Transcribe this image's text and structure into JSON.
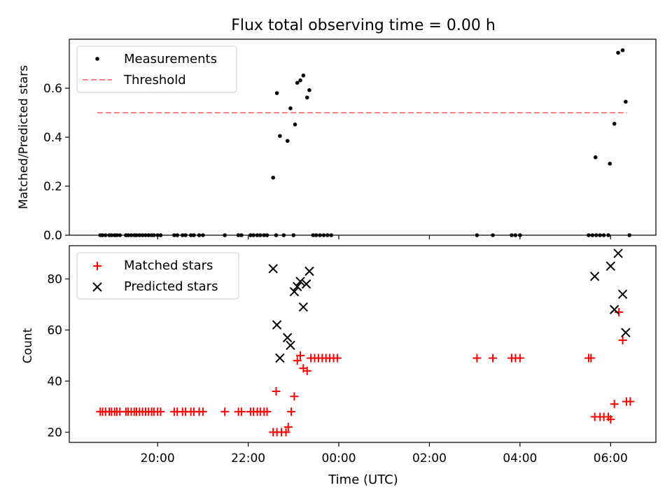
{
  "figure": {
    "title": "Flux total observing time = 0.00 h",
    "xlabel": "Time (UTC)",
    "x_ticks": [
      "20:00",
      "22:00",
      "00:00",
      "02:00",
      "04:00",
      "06:00"
    ]
  },
  "chart_data": [
    {
      "type": "scatter",
      "ylabel": "Matched/Predicted stars",
      "xlim": [
        "18:03",
        "07:00"
      ],
      "ylim": [
        0.0,
        0.8
      ],
      "y_ticks": [
        "0.0",
        "0.2",
        "0.4",
        "0.6"
      ],
      "legend": {
        "placement": "top-left",
        "entries": [
          "Measurements",
          "Threshold"
        ]
      },
      "threshold": {
        "name": "Threshold",
        "value": 0.5,
        "x_start": "18:40",
        "x_end": "06:22",
        "color": "#ff8080",
        "style": "dashed"
      },
      "series": [
        {
          "name": "Measurements",
          "color": "#000000",
          "marker": "dot",
          "points": [
            [
              "18:44",
              0
            ],
            [
              "18:47",
              0
            ],
            [
              "18:51",
              0
            ],
            [
              "18:56",
              0
            ],
            [
              "18:59",
              0
            ],
            [
              "19:03",
              0
            ],
            [
              "19:06",
              0
            ],
            [
              "19:10",
              0
            ],
            [
              "19:18",
              0
            ],
            [
              "19:21",
              0
            ],
            [
              "19:25",
              0
            ],
            [
              "19:29",
              0
            ],
            [
              "19:32",
              0
            ],
            [
              "19:36",
              0
            ],
            [
              "19:40",
              0
            ],
            [
              "19:44",
              0
            ],
            [
              "19:48",
              0
            ],
            [
              "19:52",
              0
            ],
            [
              "19:55",
              0
            ],
            [
              "20:00",
              0
            ],
            [
              "20:04",
              0
            ],
            [
              "20:22",
              0
            ],
            [
              "20:26",
              0
            ],
            [
              "20:33",
              0
            ],
            [
              "20:37",
              0
            ],
            [
              "20:44",
              0
            ],
            [
              "20:48",
              0
            ],
            [
              "20:55",
              0
            ],
            [
              "21:00",
              0
            ],
            [
              "21:29",
              0
            ],
            [
              "21:47",
              0
            ],
            [
              "21:51",
              0
            ],
            [
              "22:03",
              0
            ],
            [
              "22:07",
              0
            ],
            [
              "22:12",
              0
            ],
            [
              "22:16",
              0
            ],
            [
              "22:21",
              0
            ],
            [
              "22:25",
              0
            ],
            [
              "22:33",
              0.235
            ],
            [
              "22:37",
              0
            ],
            [
              "22:38",
              0.58
            ],
            [
              "22:42",
              0.405
            ],
            [
              "22:47",
              0
            ],
            [
              "22:52",
              0.385
            ],
            [
              "22:56",
              0.518
            ],
            [
              "23:00",
              0
            ],
            [
              "23:02",
              0.452
            ],
            [
              "23:05",
              0.622
            ],
            [
              "23:09",
              0.632
            ],
            [
              "23:13",
              0.652
            ],
            [
              "23:18",
              0.562
            ],
            [
              "23:21",
              0.592
            ],
            [
              "23:26",
              0
            ],
            [
              "23:30",
              0
            ],
            [
              "23:35",
              0
            ],
            [
              "23:40",
              0
            ],
            [
              "23:45",
              0
            ],
            [
              "23:50",
              0
            ],
            [
              "03:03",
              0
            ],
            [
              "03:24",
              0
            ],
            [
              "03:49",
              0
            ],
            [
              "03:54",
              0
            ],
            [
              "04:00",
              0
            ],
            [
              "05:31",
              0
            ],
            [
              "05:36",
              0
            ],
            [
              "05:41",
              0
            ],
            [
              "05:40",
              0.318
            ],
            [
              "05:46",
              0
            ],
            [
              "05:51",
              0
            ],
            [
              "05:57",
              0
            ],
            [
              "05:59",
              0.292
            ],
            [
              "06:05",
              0.455
            ],
            [
              "06:10",
              0.745
            ],
            [
              "06:16",
              0.755
            ],
            [
              "06:20",
              0.545
            ],
            [
              "06:25",
              0
            ]
          ]
        }
      ]
    },
    {
      "type": "scatter",
      "ylabel": "Count",
      "xlim": [
        "18:03",
        "07:00"
      ],
      "ylim": [
        16,
        93
      ],
      "y_ticks": [
        "20",
        "40",
        "60",
        "80"
      ],
      "legend": {
        "placement": "top-left",
        "entries": [
          "Matched stars",
          "Predicted stars"
        ]
      },
      "series": [
        {
          "name": "Matched stars",
          "color": "#ff0000",
          "marker": "plus",
          "points": [
            [
              "18:44",
              28
            ],
            [
              "18:47",
              28
            ],
            [
              "18:51",
              28
            ],
            [
              "18:56",
              28
            ],
            [
              "18:59",
              28
            ],
            [
              "19:03",
              28
            ],
            [
              "19:06",
              28
            ],
            [
              "19:10",
              28
            ],
            [
              "19:18",
              28
            ],
            [
              "19:21",
              28
            ],
            [
              "19:25",
              28
            ],
            [
              "19:29",
              28
            ],
            [
              "19:32",
              28
            ],
            [
              "19:36",
              28
            ],
            [
              "19:40",
              28
            ],
            [
              "19:44",
              28
            ],
            [
              "19:48",
              28
            ],
            [
              "19:52",
              28
            ],
            [
              "19:55",
              28
            ],
            [
              "20:00",
              28
            ],
            [
              "20:04",
              28
            ],
            [
              "20:22",
              28
            ],
            [
              "20:26",
              28
            ],
            [
              "20:33",
              28
            ],
            [
              "20:37",
              28
            ],
            [
              "20:44",
              28
            ],
            [
              "20:48",
              28
            ],
            [
              "20:55",
              28
            ],
            [
              "21:00",
              28
            ],
            [
              "21:29",
              28
            ],
            [
              "21:47",
              28
            ],
            [
              "21:51",
              28
            ],
            [
              "22:03",
              28
            ],
            [
              "22:07",
              28
            ],
            [
              "22:12",
              28
            ],
            [
              "22:16",
              28
            ],
            [
              "22:21",
              28
            ],
            [
              "22:25",
              28
            ],
            [
              "22:33",
              20
            ],
            [
              "22:37",
              36
            ],
            [
              "22:38",
              20
            ],
            [
              "22:44",
              20
            ],
            [
              "22:50",
              20
            ],
            [
              "22:53",
              22
            ],
            [
              "22:57",
              28
            ],
            [
              "23:01",
              34
            ],
            [
              "23:05",
              48
            ],
            [
              "23:09",
              50
            ],
            [
              "23:13",
              45
            ],
            [
              "23:18",
              44
            ],
            [
              "23:23",
              49
            ],
            [
              "23:28",
              49
            ],
            [
              "23:33",
              49
            ],
            [
              "23:38",
              49
            ],
            [
              "23:43",
              49
            ],
            [
              "23:48",
              49
            ],
            [
              "23:53",
              49
            ],
            [
              "23:58",
              49
            ],
            [
              "03:03",
              49
            ],
            [
              "03:24",
              49
            ],
            [
              "03:49",
              49
            ],
            [
              "03:54",
              49
            ],
            [
              "04:00",
              49
            ],
            [
              "05:31",
              49
            ],
            [
              "05:34",
              49
            ],
            [
              "05:39",
              26
            ],
            [
              "05:46",
              26
            ],
            [
              "05:51",
              26
            ],
            [
              "05:57",
              26
            ],
            [
              "06:00",
              25
            ],
            [
              "06:05",
              31
            ],
            [
              "06:11",
              67
            ],
            [
              "06:16",
              56
            ],
            [
              "06:21",
              32
            ],
            [
              "06:26",
              32
            ]
          ]
        },
        {
          "name": "Predicted stars",
          "color": "#000000",
          "marker": "x",
          "points": [
            [
              "22:33",
              84
            ],
            [
              "22:38",
              62
            ],
            [
              "22:42",
              49
            ],
            [
              "22:52",
              57
            ],
            [
              "22:56",
              54
            ],
            [
              "23:01",
              75
            ],
            [
              "23:05",
              77
            ],
            [
              "23:09",
              79
            ],
            [
              "23:13",
              69
            ],
            [
              "23:17",
              78
            ],
            [
              "23:21",
              83
            ],
            [
              "05:39",
              81
            ],
            [
              "06:00",
              85
            ],
            [
              "06:05",
              68
            ],
            [
              "06:10",
              90
            ],
            [
              "06:16",
              74
            ],
            [
              "06:20",
              59
            ]
          ]
        }
      ]
    }
  ]
}
